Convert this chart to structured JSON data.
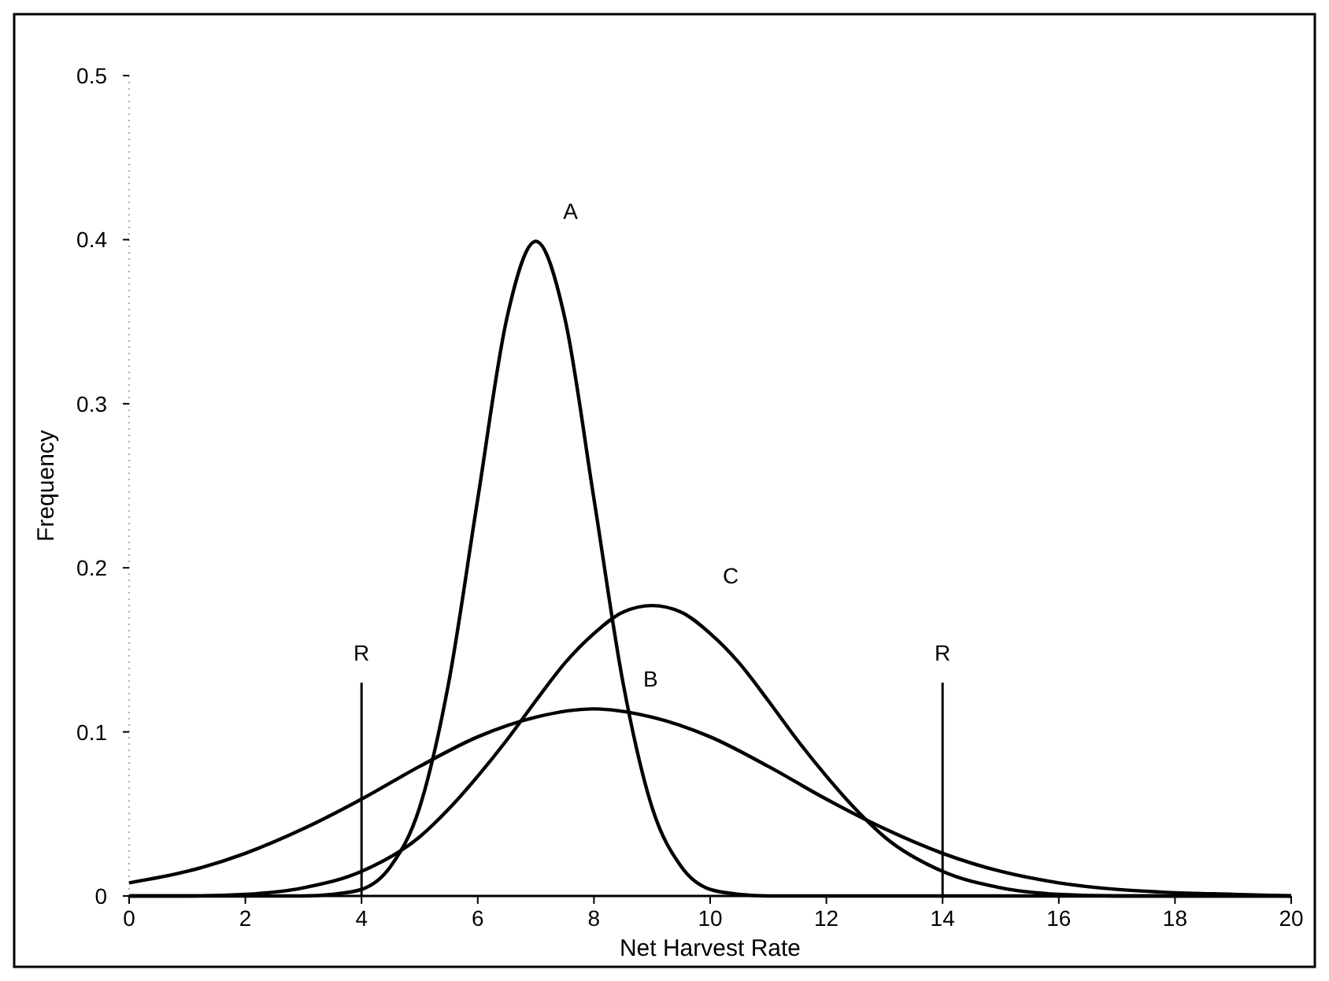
{
  "chart_data": {
    "type": "line",
    "xlabel": "Net Harvest Rate",
    "ylabel": "Frequency",
    "xlim": [
      0,
      20
    ],
    "ylim": [
      0,
      0.5
    ],
    "xticks": [
      0,
      2,
      4,
      6,
      8,
      10,
      12,
      14,
      16,
      18,
      20
    ],
    "yticks": [
      0,
      0.1,
      0.2,
      0.3,
      0.4,
      0.5
    ],
    "grid": false,
    "marker": "none",
    "line_style": "solid",
    "series": [
      {
        "name": "A",
        "color": "#000000",
        "x": [
          0,
          2,
          3,
          3.5,
          4,
          4.5,
          5,
          5.5,
          6,
          6.5,
          7,
          7.5,
          8,
          8.5,
          9,
          9.5,
          10,
          10.5,
          11,
          12,
          20
        ],
        "values": [
          0,
          0,
          0,
          0.001,
          0.004,
          0.018,
          0.054,
          0.13,
          0.242,
          0.352,
          0.399,
          0.352,
          0.242,
          0.13,
          0.054,
          0.018,
          0.004,
          0.001,
          0,
          0,
          0
        ]
      },
      {
        "name": "B",
        "color": "#000000",
        "x": [
          0,
          1,
          2,
          3,
          4,
          5,
          6,
          7,
          8,
          9,
          10,
          11,
          12,
          13,
          14,
          15,
          16,
          17,
          18,
          19,
          20
        ],
        "values": [
          0.008,
          0.015,
          0.026,
          0.041,
          0.059,
          0.079,
          0.097,
          0.109,
          0.114,
          0.109,
          0.097,
          0.079,
          0.059,
          0.041,
          0.026,
          0.015,
          0.008,
          0.004,
          0.002,
          0.001,
          0
        ]
      },
      {
        "name": "C",
        "color": "#000000",
        "x": [
          0,
          1,
          2,
          3,
          4,
          5,
          5.5,
          6,
          6.5,
          7,
          7.5,
          8,
          8.5,
          9,
          9.5,
          10,
          10.5,
          11,
          11.5,
          12,
          12.5,
          13,
          14,
          15,
          16,
          17,
          18,
          20
        ],
        "values": [
          0,
          0,
          0.001,
          0.005,
          0.015,
          0.036,
          0.053,
          0.073,
          0.095,
          0.119,
          0.142,
          0.16,
          0.173,
          0.177,
          0.173,
          0.16,
          0.142,
          0.119,
          0.095,
          0.073,
          0.053,
          0.036,
          0.015,
          0.005,
          0.001,
          0,
          0,
          0
        ]
      }
    ],
    "ref_lines": [
      {
        "axis": "x",
        "value": 4,
        "label": "R",
        "color": "#000000"
      },
      {
        "axis": "x",
        "value": 14,
        "label": "R",
        "color": "#000000"
      }
    ]
  }
}
